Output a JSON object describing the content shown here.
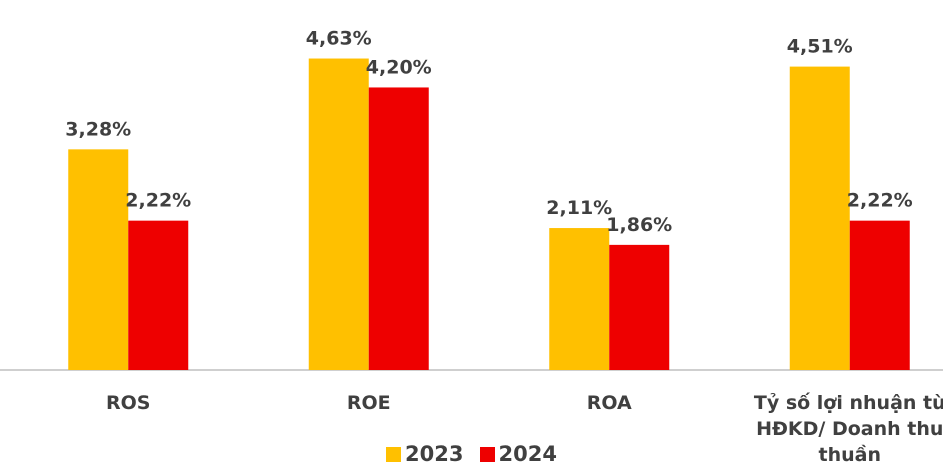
{
  "chart_data": {
    "type": "bar",
    "categories": [
      "ROS",
      "ROE",
      "ROA",
      "Tỷ số lợi nhuận từ HĐKD/ Doanh thu thuần"
    ],
    "series": [
      {
        "name": "2023",
        "color": "#ffc000",
        "values": [
          3.28,
          4.63,
          2.11,
          4.51
        ],
        "value_labels": [
          "3,28%",
          "4,63%",
          "2,11%",
          "4,51%"
        ]
      },
      {
        "name": "2024",
        "color": "#ee0000",
        "values": [
          2.22,
          4.2,
          1.86,
          2.22
        ],
        "value_labels": [
          "2,22%",
          "4,20%",
          "1,86%",
          "2,22%"
        ]
      }
    ],
    "ylim": [
      0,
      5.5
    ],
    "legend": "bottom"
  }
}
